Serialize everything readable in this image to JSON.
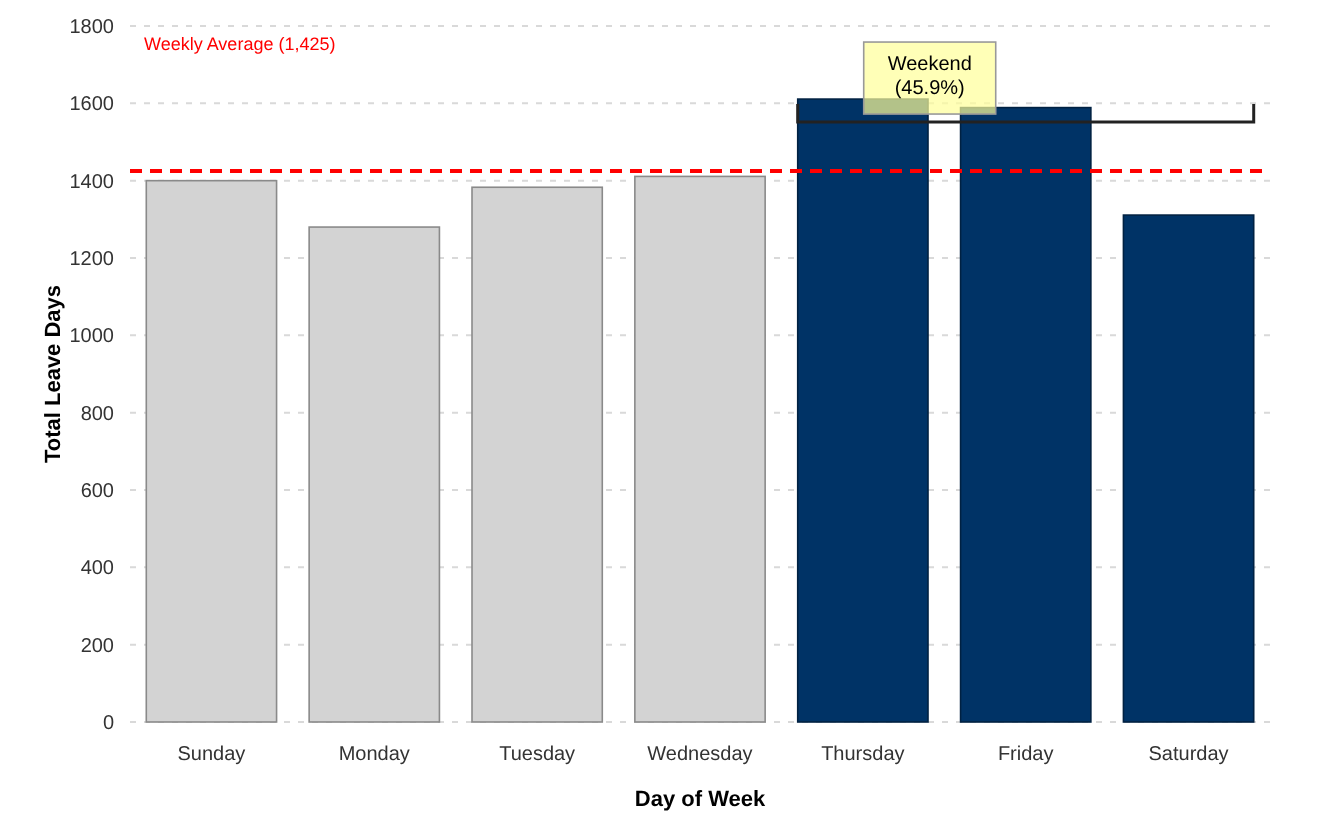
{
  "chart_data": {
    "type": "bar",
    "xlabel": "Day of Week",
    "ylabel": "Total Leave Days",
    "categories": [
      "Sunday",
      "Monday",
      "Tuesday",
      "Wednesday",
      "Thursday",
      "Friday",
      "Saturday"
    ],
    "values": [
      1400,
      1280,
      1383,
      1411,
      1611,
      1589,
      1311
    ],
    "colors": [
      "#d3d3d3",
      "#d3d3d3",
      "#d3d3d3",
      "#d3d3d3",
      "#003366",
      "#003366",
      "#003366"
    ],
    "ylim": [
      0,
      1800
    ],
    "yticks": [
      0,
      200,
      400,
      600,
      800,
      1000,
      1200,
      1400,
      1600,
      1800
    ],
    "grid": "y",
    "ref_lines": [
      {
        "axis": "y",
        "value": 1425,
        "label": "Weekly Average (1,425)",
        "color": "#ff0000",
        "line_style": "dashed"
      }
    ],
    "annotations": [
      "Weekend (45.9%)"
    ]
  }
}
